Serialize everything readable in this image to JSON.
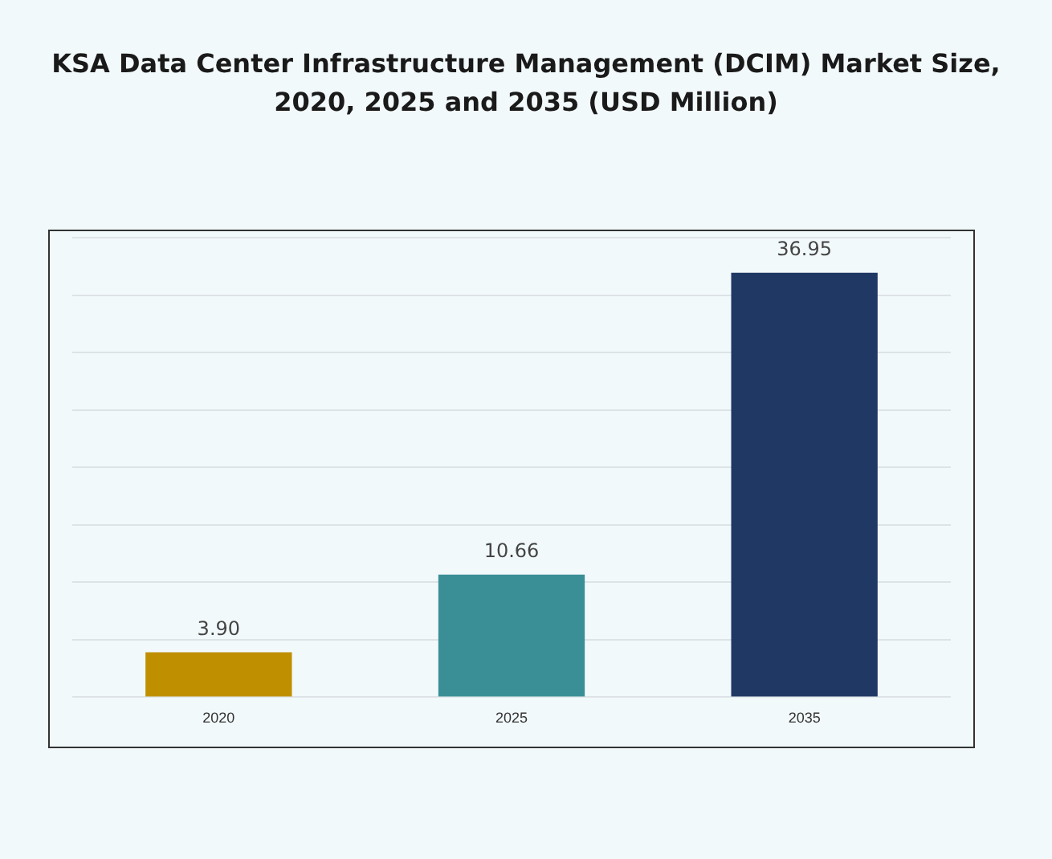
{
  "chart_data": {
    "type": "bar",
    "title": "KSA Data Center Infrastructure  Management (DCIM) Market Size, 2020, 2025 and 2035 (USD Million)",
    "categories": [
      "2020",
      "2025",
      "2035"
    ],
    "values": [
      3.9,
      10.66,
      36.95
    ],
    "colors": [
      "#c08f00",
      "#3a8f96",
      "#1f3864"
    ],
    "value_labels": [
      "3.90",
      "10.66",
      "36.95"
    ],
    "ylim": [
      0,
      40
    ],
    "yticks": [
      {
        "value": 0,
        "label": null
      },
      {
        "value": 5,
        "label": null
      },
      {
        "value": 10,
        "label": null
      },
      {
        "value": 15,
        "label": null
      },
      {
        "value": 20,
        "label": null
      },
      {
        "value": 25,
        "label": null
      },
      {
        "value": 30,
        "label": null
      },
      {
        "value": 35,
        "label": null
      },
      {
        "value": 40,
        "label": null
      }
    ],
    "grid": "y",
    "tick_labels": "x",
    "legend": false
  }
}
